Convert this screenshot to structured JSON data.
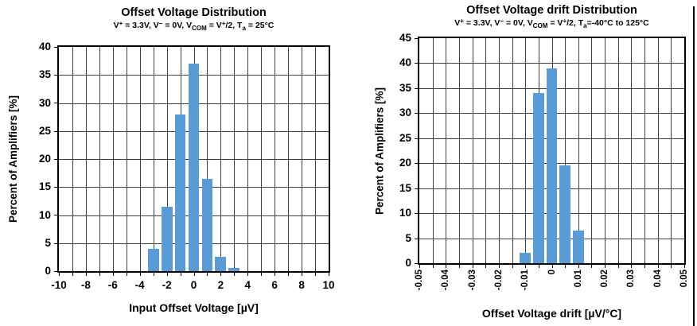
{
  "page": {
    "background": "#ffffff",
    "right_border_color": "#000000"
  },
  "chart_data": [
    {
      "type": "bar",
      "title": "Offset Voltage Distribution",
      "subtitle_segments": [
        {
          "text": "V",
          "style": "n"
        },
        {
          "text": "+",
          "style": "sup"
        },
        {
          "text": " = 3.3V, V",
          "style": "n"
        },
        {
          "text": "−",
          "style": "sup"
        },
        {
          "text": " = 0V, V",
          "style": "n"
        },
        {
          "text": "COM",
          "style": "sub"
        },
        {
          "text": " = V",
          "style": "n"
        },
        {
          "text": "+",
          "style": "sup"
        },
        {
          "text": "/2, T",
          "style": "n"
        },
        {
          "text": "a",
          "style": "sub"
        },
        {
          "text": " = 25°C",
          "style": "n"
        }
      ],
      "xlabel": "Input Offset Voltage [µV]",
      "ylabel": "Percent of Amplifiers [%]",
      "categories": [
        -3,
        -2,
        -1,
        0,
        1,
        2,
        3
      ],
      "values": [
        4,
        11.5,
        28,
        37,
        16.5,
        2.5,
        0.5
      ],
      "xlim": [
        -10,
        10
      ],
      "ylim": [
        0,
        40
      ],
      "x_gridline_step": 1,
      "x_tick_labels": [
        "-10",
        "-8",
        "-6",
        "-4",
        "-2",
        "0",
        "2",
        "4",
        "6",
        "8",
        "10"
      ],
      "y_tick_labels": [
        "0",
        "5",
        "10",
        "15",
        "20",
        "25",
        "30",
        "35",
        "40"
      ],
      "x_labels_rotated": false,
      "legend": "none",
      "grid": "on",
      "bar_color": "#5B9BD5",
      "grid_color": "#3f3f3f",
      "frame_color": "#000000"
    },
    {
      "type": "bar",
      "title": "Offset Voltage drift Distribution",
      "subtitle_segments": [
        {
          "text": "V",
          "style": "n"
        },
        {
          "text": "+",
          "style": "sup"
        },
        {
          "text": " = 3.3V, V",
          "style": "n"
        },
        {
          "text": "−",
          "style": "sup"
        },
        {
          "text": " = 0V, V",
          "style": "n"
        },
        {
          "text": "COM",
          "style": "sub"
        },
        {
          "text": " = V",
          "style": "n"
        },
        {
          "text": "+",
          "style": "sup"
        },
        {
          "text": "/2, T",
          "style": "n"
        },
        {
          "text": "a",
          "style": "sub"
        },
        {
          "text": "=-40°C to 125°C",
          "style": "n"
        }
      ],
      "xlabel": "Offset Voltage drift [µV/°C]",
      "ylabel": "Percent of Amplifiers [%]",
      "categories": [
        -0.01,
        -0.005,
        0,
        0.005,
        0.01
      ],
      "values": [
        2,
        34,
        39,
        19.5,
        6.5
      ],
      "xlim": [
        -0.05,
        0.05
      ],
      "ylim": [
        0,
        45
      ],
      "x_gridline_step": 0.005,
      "x_tick_labels": [
        "-0.05",
        "-0.04",
        "-0.03",
        "-0.02",
        "-0.01",
        "0",
        "0.01",
        "0.02",
        "0.03",
        "0.04",
        "0.05"
      ],
      "y_tick_labels": [
        "0",
        "5",
        "10",
        "15",
        "20",
        "25",
        "30",
        "35",
        "40",
        "45"
      ],
      "x_labels_rotated": true,
      "legend": "none",
      "grid": "on",
      "bar_color": "#5B9BD5",
      "grid_color": "#3f3f3f",
      "frame_color": "#000000"
    }
  ]
}
